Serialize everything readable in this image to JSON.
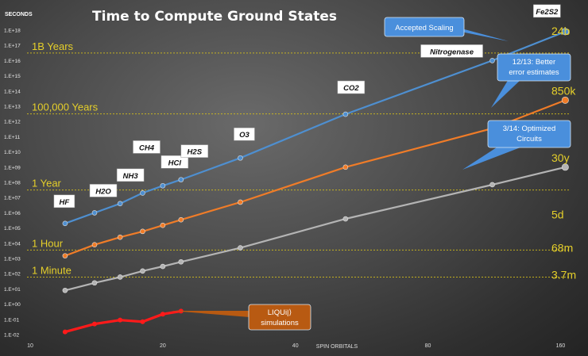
{
  "chart_data": {
    "type": "line",
    "title": "Time to Compute Ground States",
    "ylabel": "SECONDS",
    "xlabel": "SPIN ORBITALS",
    "x_scale": "log",
    "y_scale": "log",
    "xlim": [
      10,
      170
    ],
    "ylim": [
      0.01,
      1e+18
    ],
    "xticks": [
      10,
      20,
      40,
      80,
      160
    ],
    "yticks": [
      "1.E-02",
      "1.E-01",
      "1.E+00",
      "1.E+01",
      "1.E+02",
      "1.E+03",
      "1.E+04",
      "1.E+05",
      "1.E+06",
      "1.E+07",
      "1.E+08",
      "1.E+09",
      "1.E+10",
      "1.E+11",
      "1.E+12",
      "1.E+13",
      "1.E+14",
      "1.E+15",
      "1.E+16",
      "1.E+17",
      "1.E+18"
    ],
    "grid": false,
    "reference_lines": [
      {
        "label": "1B Years",
        "value": 3.15e+16
      },
      {
        "label": "100,000  Years",
        "value": 3150000000000.0
      },
      {
        "label": "1 Year",
        "value": 31500000.0
      },
      {
        "label": "1 Hour",
        "value": 3600
      },
      {
        "label": "1 Minute",
        "value": 60
      }
    ],
    "series": [
      {
        "color": "#4e8fd0",
        "x": [
          12,
          14,
          16,
          18,
          20,
          22,
          30,
          52,
          112,
          164
        ],
        "y": [
          200000,
          1000000,
          4000000,
          20000000,
          60000000,
          150000000,
          4000000000,
          3000000000000,
          10000000000000000,
          800000000000000000
        ],
        "end_label": "24b"
      },
      {
        "color": "#f07c28",
        "x": [
          12,
          14,
          16,
          18,
          20,
          22,
          30,
          52,
          112,
          164
        ],
        "y": [
          1500,
          8000,
          25000,
          60000,
          150000,
          350000,
          5000000,
          1000000000,
          350000000000,
          25000000000000
        ],
        "end_label": "850k"
      },
      {
        "color": "#b4b4b4",
        "x": [
          12,
          14,
          16,
          18,
          20,
          22,
          30,
          52,
          112,
          164
        ],
        "y": [
          8,
          25,
          60,
          150,
          300,
          600,
          5000,
          400000,
          70000000,
          1000000000
        ],
        "end_label": "30y"
      },
      {
        "color": "#ff1a1a",
        "x": [
          12,
          14,
          16,
          18,
          20,
          22
        ],
        "y": [
          0.015,
          0.05,
          0.09,
          0.07,
          0.22,
          0.35
        ]
      }
    ],
    "right_labels": [
      "5d",
      "68m",
      "3.7m"
    ],
    "molecule_labels": [
      {
        "text": "HF",
        "x": 12
      },
      {
        "text": "H2O",
        "x": 14
      },
      {
        "text": "NH3",
        "x": 16
      },
      {
        "text": "CH4",
        "x": 18
      },
      {
        "text": "HCl",
        "x": 20
      },
      {
        "text": "H2S",
        "x": 22
      },
      {
        "text": "O3",
        "x": 30
      },
      {
        "text": "CO2",
        "x": 52
      },
      {
        "text": "Nitrogenase",
        "x": 112
      },
      {
        "text": "Fe2S2",
        "x": 164
      }
    ],
    "callouts": [
      {
        "text": [
          "Accepted Scaling"
        ]
      },
      {
        "text": [
          "12/13: Better",
          "error estimates"
        ]
      },
      {
        "text": [
          "3/14: Optimized",
          "Circuits"
        ]
      },
      {
        "text": [
          "LIQUi|⟩",
          "simulations"
        ]
      }
    ]
  }
}
